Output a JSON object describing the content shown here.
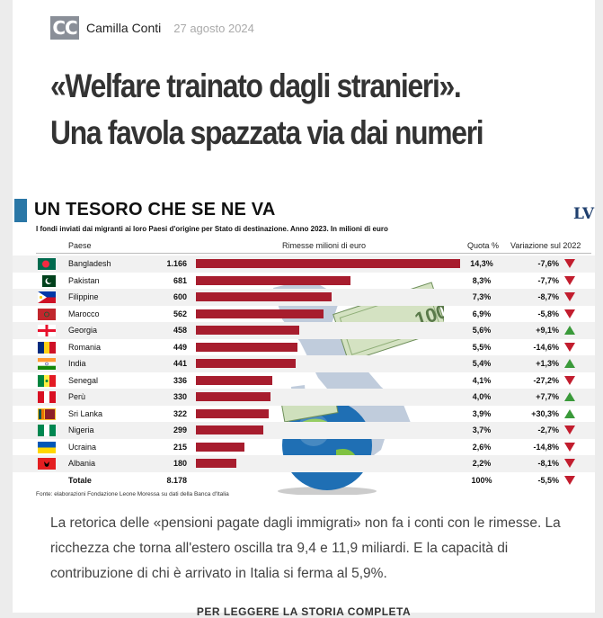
{
  "author": {
    "initials": "CC",
    "name": "Camilla Conti",
    "date": "27 agosto 2024"
  },
  "headline": {
    "line1": "«Welfare trainato dagli stranieri».",
    "line2": "Una favola spazzata via dai numeri"
  },
  "infographic": {
    "title": "UN TESORO CHE SE NE VA",
    "logo": "LV",
    "subtitle": "I fondi inviati dai migranti ai loro Paesi d'origine per Stato di destinazione. Anno 2023. In milioni di euro",
    "col_country": "Paese",
    "col_remit": "Rimesse milioni di euro",
    "col_share": "Quota %",
    "col_change": "Variazione sul 2022",
    "source": "Fonte: elaborazioni Fondazione Leone Moressa su dati della Banca d'Italia",
    "banknote_label": "100 EURO",
    "total": {
      "label": "Totale",
      "value": "8.178",
      "share": "100%",
      "change": "-5,5%"
    }
  },
  "chart_data": {
    "type": "bar",
    "title": "UN TESORO CHE SE NE VA",
    "xlabel": "Rimesse milioni di euro",
    "ylabel": "Paese",
    "xlim": [
      0,
      1166
    ],
    "categories": [
      "Bangladesh",
      "Pakistan",
      "Filippine",
      "Marocco",
      "Georgia",
      "Romania",
      "India",
      "Senegal",
      "Perù",
      "Sri Lanka",
      "Nigeria",
      "Ucraina",
      "Albania"
    ],
    "values": [
      1166,
      681,
      600,
      562,
      458,
      449,
      441,
      336,
      330,
      322,
      299,
      215,
      180
    ],
    "rows": [
      {
        "country": "Bangladesh",
        "value": "1.166",
        "share": "14,3%",
        "change": "-7,6%",
        "dir": "down",
        "flag": "bangladesh-flag-icon"
      },
      {
        "country": "Pakistan",
        "value": "681",
        "share": "8,3%",
        "change": "-7,7%",
        "dir": "down",
        "flag": "pakistan-flag-icon"
      },
      {
        "country": "Filippine",
        "value": "600",
        "share": "7,3%",
        "change": "-8,7%",
        "dir": "down",
        "flag": "philippines-flag-icon"
      },
      {
        "country": "Marocco",
        "value": "562",
        "share": "6,9%",
        "change": "-5,8%",
        "dir": "down",
        "flag": "morocco-flag-icon"
      },
      {
        "country": "Georgia",
        "value": "458",
        "share": "5,6%",
        "change": "+9,1%",
        "dir": "up",
        "flag": "georgia-flag-icon"
      },
      {
        "country": "Romania",
        "value": "449",
        "share": "5,5%",
        "change": "-14,6%",
        "dir": "down",
        "flag": "romania-flag-icon"
      },
      {
        "country": "India",
        "value": "441",
        "share": "5,4%",
        "change": "+1,3%",
        "dir": "up",
        "flag": "india-flag-icon"
      },
      {
        "country": "Senegal",
        "value": "336",
        "share": "4,1%",
        "change": "-27,2%",
        "dir": "down",
        "flag": "senegal-flag-icon"
      },
      {
        "country": "Perù",
        "value": "330",
        "share": "4,0%",
        "change": "+7,7%",
        "dir": "up",
        "flag": "peru-flag-icon"
      },
      {
        "country": "Sri Lanka",
        "value": "322",
        "share": "3,9%",
        "change": "+30,3%",
        "dir": "up",
        "flag": "sri-lanka-flag-icon"
      },
      {
        "country": "Nigeria",
        "value": "299",
        "share": "3,7%",
        "change": "-2,7%",
        "dir": "down",
        "flag": "nigeria-flag-icon"
      },
      {
        "country": "Ucraina",
        "value": "215",
        "share": "2,6%",
        "change": "-14,8%",
        "dir": "down",
        "flag": "ukraine-flag-icon"
      },
      {
        "country": "Albania",
        "value": "180",
        "share": "2,2%",
        "change": "-8,1%",
        "dir": "down",
        "flag": "albania-flag-icon"
      }
    ]
  },
  "body": {
    "text": "La retorica delle «pensioni pagate dagli immigrati» non fa i conti con le rimesse. La ricchezza che torna all'estero oscilla tra 9,4 e 11,9 miliardi. E la capacità di contribuzione di chi è arrivato in Italia si ferma al 5,9%."
  },
  "cta": {
    "label": "PER LEGGERE LA STORIA COMPLETA"
  },
  "colors": {
    "bar": "#a71d2e",
    "down": "#c21d2e",
    "up": "#3a9a3a",
    "accent": "#2a77a6"
  }
}
